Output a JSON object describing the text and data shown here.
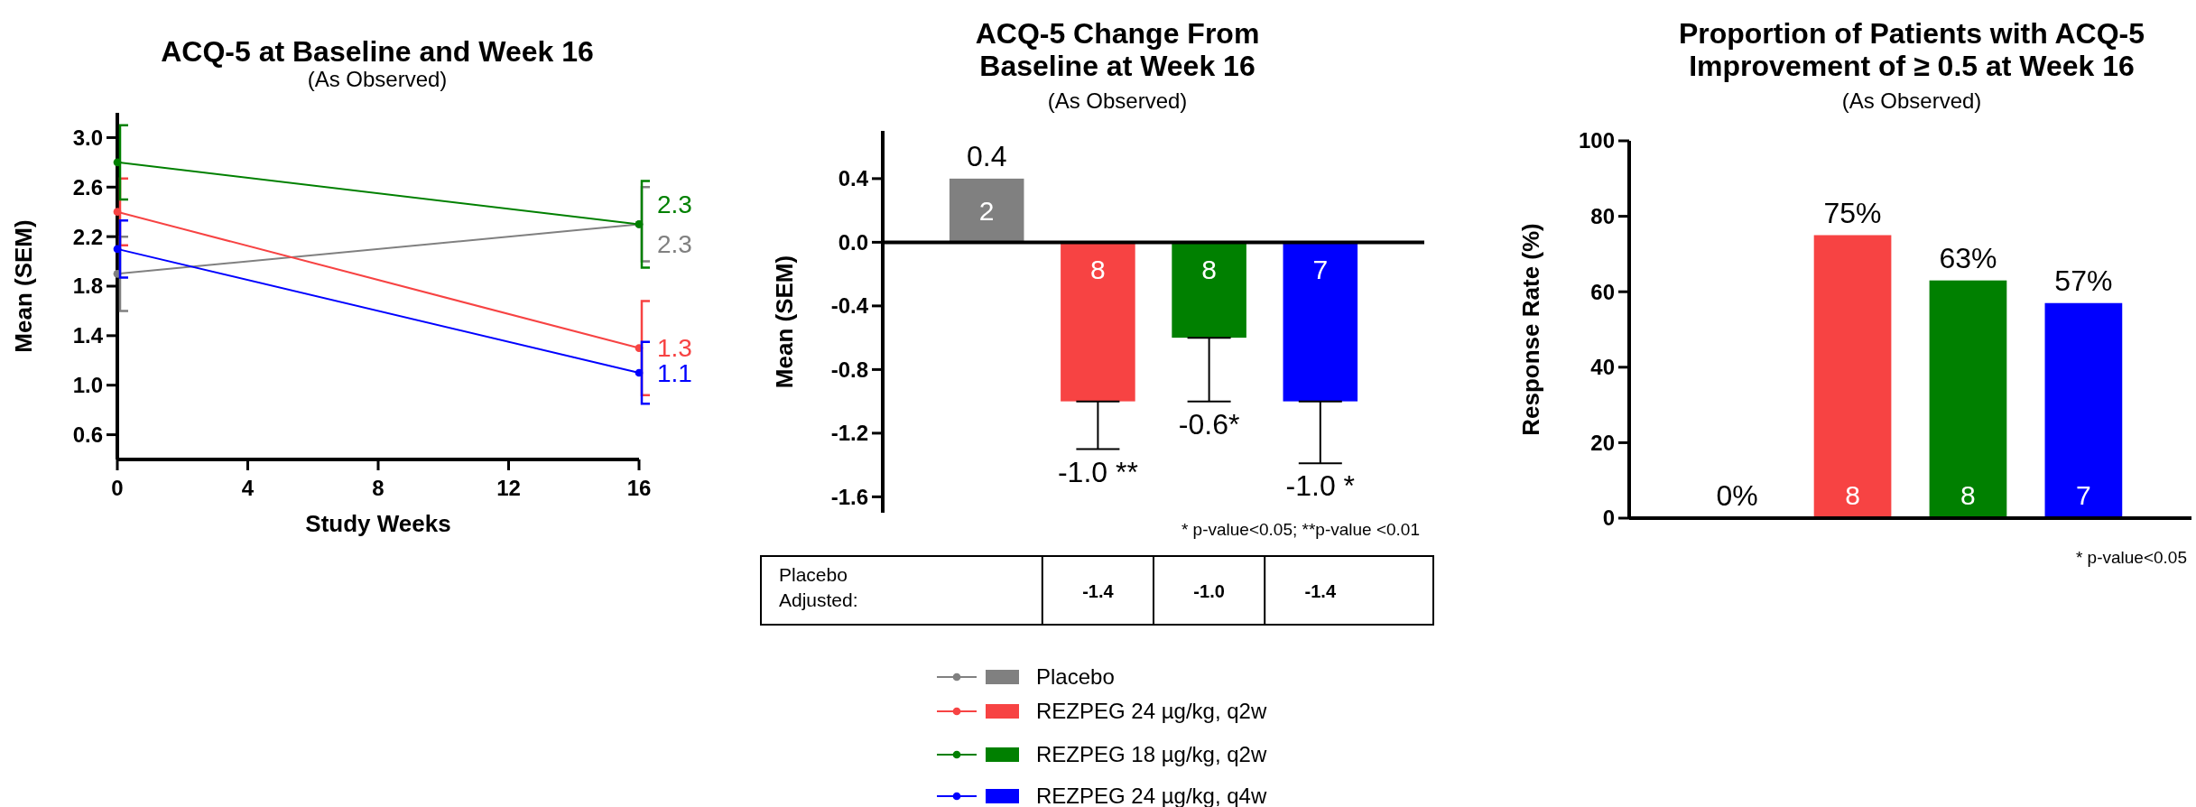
{
  "chart_data": [
    {
      "type": "line",
      "title": "ACQ-5 at Baseline and Week 16",
      "subtitle": "(As Observed)",
      "xlabel": "Study Weeks",
      "ylabel": "Mean (SEM)",
      "x": [
        0,
        16
      ],
      "xlim": [
        0,
        16
      ],
      "xticks": [
        0,
        4,
        8,
        12,
        16
      ],
      "ylim": [
        0.4,
        3.2
      ],
      "yticks": [
        0.6,
        {
          "value": 1,
          "label": "1.0"
        },
        1.4,
        1.8,
        2.2,
        2.6,
        {
          "value": 3,
          "label": "3.0"
        }
      ],
      "marker": "circle",
      "grid": false,
      "legend": "bottom",
      "series": [
        {
          "name": "Placebo",
          "color": "#808080",
          "values": [
            1.9,
            2.3
          ],
          "errors": [
            0.3,
            0.3
          ],
          "value_labels": [
            null,
            "2.3"
          ]
        },
        {
          "name": "REZPEG 24 µg/kg, q2w",
          "color": "#f74343",
          "values": [
            2.4,
            1.3
          ],
          "errors": [
            0.27,
            0.38
          ],
          "value_labels": [
            null,
            "1.3"
          ]
        },
        {
          "name": "REZPEG 18 µg/kg, q2w",
          "color": "#008000",
          "values": [
            2.8,
            2.3
          ],
          "errors": [
            0.3,
            0.35
          ],
          "value_labels": [
            null,
            "2.3"
          ]
        },
        {
          "name": "REZPEG 24 µg/kg, q4w",
          "color": "#0000ff",
          "values": [
            2.1,
            1.1
          ],
          "errors": [
            0.23,
            0.25
          ],
          "value_labels": [
            null,
            "1.1"
          ]
        }
      ]
    },
    {
      "type": "bar",
      "title": "ACQ-5 Change From Baseline at Week 16",
      "subtitle": "(As Observed)",
      "ylabel": "Mean (SEM)",
      "categories": [
        null,
        null,
        null,
        null
      ],
      "values": [
        0.4,
        -1.0,
        -0.6,
        -1.0
      ],
      "colors": [
        "#808080",
        "#f74343",
        "#008000",
        "#0000ff"
      ],
      "errors": [
        null,
        [
          -1.3,
          -1.0
        ],
        [
          -1.0,
          -0.6
        ],
        [
          -1.39,
          -1.0
        ]
      ],
      "value_labels": [
        "0.4",
        "-1.0 **",
        "-0.6*",
        "-1.0 *"
      ],
      "ylim": [
        -1.7,
        0.7
      ],
      "yticks": [
        -1.6,
        -1.2,
        -0.8,
        -0.4,
        {
          "value": 0,
          "label": "0.0"
        },
        0.4
      ],
      "grid": false,
      "ref_lines": [
        {
          "axis": "y",
          "value": 0
        }
      ],
      "annotations": [
        "2",
        "8",
        "8",
        "7",
        "* p-value<0.05; **p-value <0.01",
        "Placebo Adjusted:",
        "-1.4",
        "-1.0",
        "-1.4"
      ]
    },
    {
      "type": "bar",
      "title": "Proportion of Patients with ACQ-5 Improvement of ≥ 0.5 at Week 16",
      "subtitle": "(As Observed)",
      "ylabel": "Response Rate (%)",
      "categories": [
        null,
        null,
        null,
        null
      ],
      "values": [
        0,
        75,
        63,
        57
      ],
      "colors": [
        "#808080",
        "#f74343",
        "#008000",
        "#0000ff"
      ],
      "value_labels": [
        "0%",
        "75%",
        "63%",
        "57%"
      ],
      "ylim": [
        0,
        100
      ],
      "yticks": [
        0,
        20,
        40,
        60,
        80,
        100
      ],
      "grid": false,
      "annotations": [
        "8",
        "8",
        "7",
        "* p-value<0.05"
      ]
    }
  ]
}
